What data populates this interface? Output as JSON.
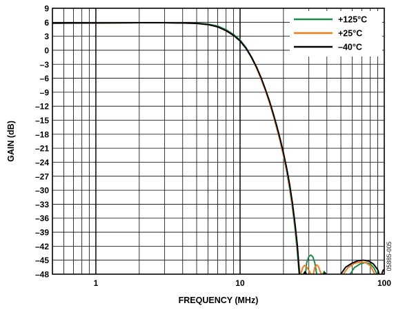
{
  "chart_data": {
    "type": "line",
    "title": "",
    "xlabel": "FREQUENCY (MHz)",
    "ylabel": "GAIN (dB)",
    "x_scale": "log",
    "xlim": [
      0.5,
      100
    ],
    "ylim": [
      -48,
      9
    ],
    "x_major_ticks": [
      1,
      10,
      100
    ],
    "x_tick_labels": [
      "1",
      "10",
      "100"
    ],
    "y_ticks": [
      9,
      6,
      3,
      0,
      -3,
      -6,
      -9,
      -12,
      -15,
      -18,
      -21,
      -24,
      -27,
      -30,
      -33,
      -36,
      -39,
      -42,
      -45,
      -48
    ],
    "y_tick_labels": [
      "9",
      "6",
      "3",
      "0",
      "–3",
      "–6",
      "–9",
      "–12",
      "–15",
      "–18",
      "–21",
      "–24",
      "–27",
      "–30",
      "–33",
      "–36",
      "–39",
      "–42",
      "–45",
      "–48"
    ],
    "grid": true,
    "legend_position": "top-right",
    "series": [
      {
        "name": "+125°C",
        "color": "#1a8a4a",
        "points": [
          [
            0.5,
            5.8
          ],
          [
            1,
            5.85
          ],
          [
            2,
            5.9
          ],
          [
            3,
            5.9
          ],
          [
            4,
            5.85
          ],
          [
            5,
            5.8
          ],
          [
            6,
            5.6
          ],
          [
            7,
            5.2
          ],
          [
            8,
            4.4
          ],
          [
            9,
            3.4
          ],
          [
            10,
            2.2
          ],
          [
            11,
            0.6
          ],
          [
            12,
            -1.4
          ],
          [
            13,
            -3.6
          ],
          [
            14,
            -6.0
          ],
          [
            15,
            -8.6
          ],
          [
            16,
            -11.2
          ],
          [
            17,
            -14.0
          ],
          [
            18,
            -16.8
          ],
          [
            19,
            -19.6
          ],
          [
            20,
            -22.6
          ],
          [
            21,
            -25.8
          ],
          [
            22,
            -29.4
          ],
          [
            23,
            -33.4
          ],
          [
            24,
            -38.0
          ],
          [
            25,
            -43.5
          ],
          [
            25.7,
            -48
          ]
        ],
        "lobes": [
          [
            [
              28.4,
              -48
            ],
            [
              29,
              -45.5
            ],
            [
              30,
              -44.2
            ],
            [
              31,
              -43.9
            ],
            [
              32,
              -44.3
            ],
            [
              33,
              -45.6
            ],
            [
              34,
              -48
            ]
          ],
          [
            [
              37.5,
              -48
            ],
            [
              38.3,
              -47.4
            ],
            [
              39,
              -48
            ]
          ],
          [
            [
              58,
              -48
            ],
            [
              62,
              -46.6
            ],
            [
              68,
              -45.8
            ],
            [
              74,
              -45.5
            ],
            [
              80,
              -45.8
            ],
            [
              85,
              -46.7
            ],
            [
              89,
              -48
            ]
          ]
        ]
      },
      {
        "name": "+25°C",
        "color": "#f07d1e",
        "points": [
          [
            0.5,
            5.8
          ],
          [
            1,
            5.85
          ],
          [
            2,
            5.9
          ],
          [
            3,
            5.9
          ],
          [
            4,
            5.85
          ],
          [
            5,
            5.75
          ],
          [
            6,
            5.5
          ],
          [
            7,
            5.0
          ],
          [
            8,
            4.2
          ],
          [
            9,
            3.2
          ],
          [
            10,
            2.0
          ],
          [
            11,
            0.4
          ],
          [
            12,
            -1.6
          ],
          [
            13,
            -3.8
          ],
          [
            14,
            -6.2
          ],
          [
            15,
            -8.7
          ],
          [
            16,
            -11.3
          ],
          [
            17,
            -14.0
          ],
          [
            18,
            -16.8
          ],
          [
            19,
            -19.6
          ],
          [
            20,
            -22.5
          ],
          [
            21,
            -25.6
          ],
          [
            22,
            -29.0
          ],
          [
            23,
            -32.9
          ],
          [
            24,
            -37.3
          ],
          [
            25,
            -42.6
          ],
          [
            26,
            -48
          ]
        ],
        "lobes": [
          [
            [
              26.3,
              -48
            ],
            [
              27.2,
              -46.6
            ],
            [
              28,
              -46.1
            ],
            [
              29,
              -46.4
            ],
            [
              30,
              -47.2
            ],
            [
              31,
              -48
            ]
          ],
          [
            [
              32.2,
              -48
            ],
            [
              33,
              -46.5
            ],
            [
              34,
              -46.0
            ],
            [
              35,
              -46.4
            ],
            [
              36,
              -47.5
            ],
            [
              36.8,
              -48
            ]
          ],
          [
            [
              52,
              -48
            ],
            [
              56,
              -46.6
            ],
            [
              62,
              -45.7
            ],
            [
              68,
              -45.4
            ],
            [
              74,
              -45.5
            ],
            [
              80,
              -46.2
            ],
            [
              86,
              -48
            ]
          ]
        ]
      },
      {
        "name": "–40°C",
        "color": "#000000",
        "points": [
          [
            0.5,
            5.8
          ],
          [
            1,
            5.85
          ],
          [
            2,
            5.9
          ],
          [
            3,
            5.9
          ],
          [
            4,
            5.85
          ],
          [
            5,
            5.75
          ],
          [
            6,
            5.5
          ],
          [
            7,
            5.0
          ],
          [
            8,
            4.2
          ],
          [
            9,
            3.2
          ],
          [
            10,
            2.0
          ],
          [
            11,
            0.4
          ],
          [
            12,
            -1.5
          ],
          [
            13,
            -3.6
          ],
          [
            14,
            -5.9
          ],
          [
            15,
            -8.4
          ],
          [
            16,
            -10.9
          ],
          [
            17,
            -13.6
          ],
          [
            18,
            -16.3
          ],
          [
            19,
            -19.1
          ],
          [
            20,
            -22.0
          ],
          [
            21,
            -25.1
          ],
          [
            22,
            -28.5
          ],
          [
            23,
            -32.4
          ],
          [
            24,
            -36.9
          ],
          [
            25,
            -42.0
          ],
          [
            25.8,
            -48
          ]
        ],
        "lobes": [
          [
            [
              27.5,
              -48
            ],
            [
              28.2,
              -47.5
            ],
            [
              28.9,
              -48
            ]
          ],
          [
            [
              38.2,
              -48
            ],
            [
              38.8,
              -47.7
            ],
            [
              39.4,
              -48
            ]
          ],
          [
            [
              50,
              -48
            ],
            [
              54,
              -46.5
            ],
            [
              60,
              -45.6
            ],
            [
              66,
              -45.1
            ],
            [
              72,
              -45.0
            ],
            [
              78,
              -45.2
            ],
            [
              84,
              -45.8
            ],
            [
              90,
              -47.0
            ],
            [
              92,
              -48
            ]
          ],
          [
            [
              96,
              -48
            ],
            [
              98,
              -47.2
            ],
            [
              100,
              -47.0
            ]
          ]
        ]
      }
    ]
  },
  "watermark": "05885-005"
}
